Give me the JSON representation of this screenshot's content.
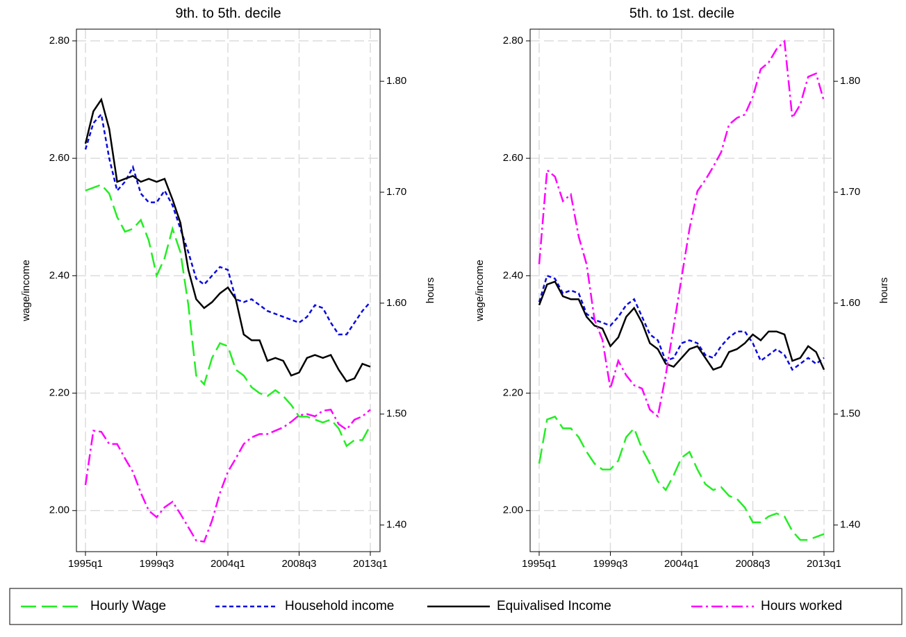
{
  "chart_data": [
    {
      "type": "line",
      "title": "9th. to 5th. decile",
      "ylabel": "wage/income",
      "y2label": "hours",
      "categories": [
        "1995q1",
        null,
        null,
        null,
        null,
        null,
        null,
        null,
        null,
        "1999q3",
        null,
        null,
        null,
        null,
        null,
        null,
        null,
        null,
        "2004q1",
        null,
        null,
        null,
        null,
        null,
        null,
        null,
        null,
        "2008q3",
        null,
        null,
        null,
        null,
        null,
        null,
        null,
        null,
        "2013q1"
      ],
      "series": [
        {
          "name": "Hourly Wage",
          "color": "#22ee22",
          "dash": "22 8",
          "values": [
            2.545,
            2.55,
            2.555,
            2.54,
            2.5,
            2.475,
            2.48,
            2.495,
            2.46,
            2.4,
            2.43,
            2.48,
            2.44,
            2.35,
            2.23,
            2.215,
            2.26,
            2.285,
            2.28,
            2.24,
            2.23,
            2.21,
            2.2,
            2.195,
            2.205,
            2.195,
            2.18,
            2.16,
            2.16,
            2.155,
            2.15,
            2.155,
            2.14,
            2.11,
            2.12,
            2.12,
            2.145
          ]
        },
        {
          "name": "Household income",
          "color": "#0a0ae0",
          "dash": "6 4",
          "values": [
            2.615,
            2.66,
            2.675,
            2.6,
            2.545,
            2.56,
            2.585,
            2.54,
            2.525,
            2.525,
            2.545,
            2.52,
            2.48,
            2.44,
            2.395,
            2.385,
            2.4,
            2.415,
            2.41,
            2.36,
            2.355,
            2.36,
            2.35,
            2.34,
            2.335,
            2.33,
            2.325,
            2.32,
            2.33,
            2.35,
            2.345,
            2.32,
            2.3,
            2.3,
            2.32,
            2.34,
            2.355
          ]
        },
        {
          "name": "Equivalised Income",
          "color": "#000000",
          "dash": "",
          "values": [
            2.625,
            2.68,
            2.7,
            2.65,
            2.56,
            2.565,
            2.57,
            2.56,
            2.565,
            2.56,
            2.565,
            2.53,
            2.49,
            2.41,
            2.36,
            2.345,
            2.355,
            2.37,
            2.38,
            2.36,
            2.3,
            2.29,
            2.29,
            2.255,
            2.26,
            2.255,
            2.23,
            2.235,
            2.26,
            2.265,
            2.26,
            2.265,
            2.24,
            2.22,
            2.225,
            2.25,
            2.245
          ]
        },
        {
          "name": "Hours worked",
          "color": "#ff00ff",
          "dash": "16 5 3 5",
          "axis": "y2",
          "values": [
            1.436,
            1.485,
            1.484,
            1.473,
            1.473,
            1.46,
            1.448,
            1.429,
            1.413,
            1.407,
            1.416,
            1.421,
            1.41,
            1.398,
            1.386,
            1.385,
            1.404,
            1.429,
            1.448,
            1.46,
            1.473,
            1.479,
            1.482,
            1.482,
            1.485,
            1.488,
            1.493,
            1.499,
            1.5,
            1.498,
            1.503,
            1.504,
            1.491,
            1.486,
            1.495,
            1.498,
            1.504
          ]
        }
      ],
      "ylim": [
        1.93,
        2.82
      ],
      "yticks": [
        {
          "value": 2,
          "label": "2.00"
        },
        {
          "value": 2.2,
          "label": "2.20"
        },
        {
          "value": 2.4,
          "label": "2.40"
        },
        {
          "value": 2.6,
          "label": "2.60"
        },
        {
          "value": 2.8,
          "label": "2.80"
        }
      ],
      "y2lim": [
        1.376,
        1.847
      ],
      "y2ticks": [
        {
          "value": 1.4,
          "label": "1.40"
        },
        {
          "value": 1.5,
          "label": "1.50"
        },
        {
          "value": 1.6,
          "label": "1.60"
        },
        {
          "value": 1.7,
          "label": "1.70"
        },
        {
          "value": 1.8,
          "label": "1.80"
        }
      ],
      "grid": true
    },
    {
      "type": "line",
      "title": "5th. to 1st. decile",
      "ylabel": "wage/income",
      "y2label": "hours",
      "categories": [
        "1995q1",
        null,
        null,
        null,
        null,
        null,
        null,
        null,
        null,
        "1999q3",
        null,
        null,
        null,
        null,
        null,
        null,
        null,
        null,
        "2004q1",
        null,
        null,
        null,
        null,
        null,
        null,
        null,
        null,
        "2008q3",
        null,
        null,
        null,
        null,
        null,
        null,
        null,
        null,
        "2013q1"
      ],
      "series": [
        {
          "name": "Hourly Wage",
          "color": "#22ee22",
          "dash": "22 8",
          "values": [
            2.08,
            2.155,
            2.16,
            2.14,
            2.14,
            2.125,
            2.1,
            2.08,
            2.07,
            2.07,
            2.085,
            2.125,
            2.14,
            2.105,
            2.08,
            2.05,
            2.035,
            2.06,
            2.09,
            2.1,
            2.07,
            2.045,
            2.035,
            2.04,
            2.025,
            2.02,
            2.005,
            1.98,
            1.98,
            1.99,
            1.995,
            1.99,
            1.965,
            1.95,
            1.95,
            1.955,
            1.96
          ]
        },
        {
          "name": "Household income",
          "color": "#0a0ae0",
          "dash": "6 4",
          "values": [
            2.355,
            2.4,
            2.395,
            2.37,
            2.375,
            2.37,
            2.335,
            2.325,
            2.32,
            2.315,
            2.33,
            2.35,
            2.36,
            2.33,
            2.3,
            2.29,
            2.255,
            2.26,
            2.285,
            2.29,
            2.285,
            2.265,
            2.26,
            2.28,
            2.295,
            2.305,
            2.305,
            2.285,
            2.255,
            2.265,
            2.275,
            2.265,
            2.24,
            2.25,
            2.26,
            2.25,
            2.26
          ]
        },
        {
          "name": "Equivalised Income",
          "color": "#000000",
          "dash": "",
          "values": [
            2.35,
            2.385,
            2.39,
            2.365,
            2.36,
            2.36,
            2.33,
            2.315,
            2.31,
            2.28,
            2.295,
            2.33,
            2.345,
            2.32,
            2.285,
            2.275,
            2.25,
            2.245,
            2.26,
            2.275,
            2.28,
            2.26,
            2.24,
            2.245,
            2.27,
            2.275,
            2.285,
            2.3,
            2.29,
            2.305,
            2.305,
            2.3,
            2.255,
            2.26,
            2.28,
            2.27,
            2.24
          ]
        },
        {
          "name": "Hours worked",
          "color": "#ff00ff",
          "dash": "16 5 3 5",
          "axis": "y2",
          "values": [
            1.635,
            1.72,
            1.714,
            1.692,
            1.698,
            1.66,
            1.635,
            1.585,
            1.567,
            1.523,
            1.548,
            1.535,
            1.526,
            1.523,
            1.504,
            1.498,
            1.535,
            1.579,
            1.623,
            1.667,
            1.701,
            1.711,
            1.723,
            1.736,
            1.761,
            1.767,
            1.77,
            1.786,
            1.811,
            1.817,
            1.829,
            1.836,
            1.767,
            1.779,
            1.804,
            1.807,
            1.782
          ]
        }
      ],
      "ylim": [
        1.93,
        2.82
      ],
      "yticks": [
        {
          "value": 2,
          "label": "2.00"
        },
        {
          "value": 2.2,
          "label": "2.20"
        },
        {
          "value": 2.4,
          "label": "2.40"
        },
        {
          "value": 2.6,
          "label": "2.60"
        },
        {
          "value": 2.8,
          "label": "2.80"
        }
      ],
      "y2lim": [
        1.376,
        1.847
      ],
      "y2ticks": [
        {
          "value": 1.4,
          "label": "1.40"
        },
        {
          "value": 1.5,
          "label": "1.50"
        },
        {
          "value": 1.6,
          "label": "1.60"
        },
        {
          "value": 1.7,
          "label": "1.70"
        },
        {
          "value": 1.8,
          "label": "1.80"
        }
      ],
      "grid": true
    }
  ]
}
